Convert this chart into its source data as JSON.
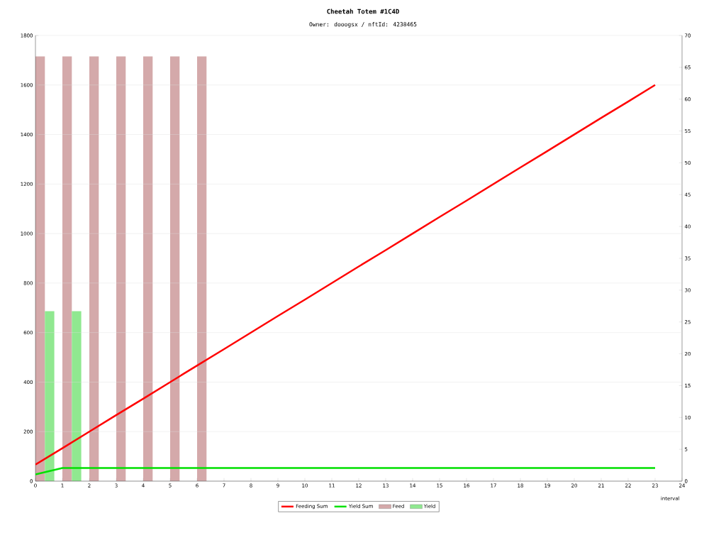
{
  "chart_data": {
    "type": "line",
    "title": "Cheetah Totem #1C4D",
    "subtitle": "Owner: dooogsx / nftId: 4238465",
    "xlabel": "interval",
    "xlim": [
      0,
      24
    ],
    "xticks": [
      0,
      1,
      2,
      3,
      4,
      5,
      6,
      7,
      8,
      9,
      10,
      11,
      12,
      13,
      14,
      15,
      16,
      17,
      18,
      19,
      20,
      21,
      22,
      23,
      24
    ],
    "ylim": [
      0,
      1800
    ],
    "yticks": [
      0,
      200,
      400,
      600,
      800,
      1000,
      1200,
      1400,
      1600,
      1800
    ],
    "y2lim": [
      0,
      70
    ],
    "y2ticks": [
      0,
      5,
      10,
      15,
      20,
      25,
      30,
      35,
      40,
      45,
      50,
      55,
      60,
      65,
      70
    ],
    "grid": "y",
    "legend": "bottom",
    "marker": "none",
    "series": [
      {
        "name": "Feeding Sum",
        "color": "#ff0000",
        "x": [
          0,
          1,
          2,
          3,
          4,
          5,
          6,
          7,
          8,
          9,
          10,
          11,
          12,
          13,
          14,
          15,
          16,
          17,
          18,
          19,
          20,
          21,
          22,
          23
        ],
        "values": [
          67,
          133,
          200,
          267,
          333,
          400,
          467,
          533,
          600,
          667,
          733,
          800,
          867,
          933,
          1000,
          1067,
          1133,
          1200,
          1267,
          1333,
          1400,
          1467,
          1533,
          1600
        ]
      },
      {
        "name": "Yield Sum",
        "color": "#00e000",
        "x": [
          0,
          1,
          2,
          3,
          4,
          5,
          6,
          7,
          8,
          9,
          10,
          11,
          12,
          13,
          14,
          15,
          16,
          17,
          18,
          19,
          20,
          21,
          22,
          23
        ],
        "values": [
          27,
          53,
          53,
          53,
          53,
          53,
          53,
          53,
          53,
          53,
          53,
          53,
          53,
          53,
          53,
          53,
          53,
          53,
          53,
          53,
          53,
          53,
          53,
          53
        ]
      },
      {
        "name": "Feed",
        "type": "bar",
        "axis": "y2",
        "color": "#d4a9aa",
        "x": [
          0,
          1,
          2,
          3,
          4,
          5,
          6
        ],
        "values": [
          66.7,
          66.7,
          66.7,
          66.7,
          66.7,
          66.7,
          66.7
        ]
      },
      {
        "name": "Yield",
        "type": "bar",
        "axis": "y2",
        "color": "#90e890",
        "x": [
          0,
          1
        ],
        "values": [
          26.7,
          26.7
        ]
      }
    ]
  }
}
